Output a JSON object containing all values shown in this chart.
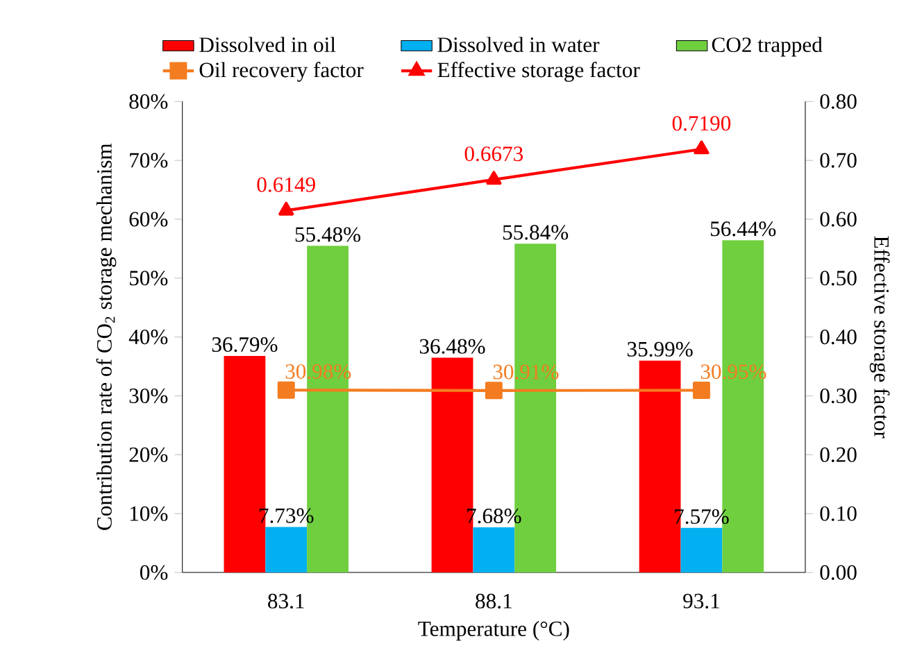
{
  "chart_data": {
    "type": "bar",
    "categories": [
      "83.1",
      "88.1",
      "93.1"
    ],
    "xlabel": "Temperature (°C)",
    "ylabel": "Contribution rate of CO$_{2}$ storage mechanism",
    "y2label": "Effective storage factor",
    "ylim": [
      0,
      80
    ],
    "yticks": [
      {
        "value": 0,
        "label": "0%"
      },
      {
        "value": 10,
        "label": "10%"
      },
      {
        "value": 20,
        "label": "20%"
      },
      {
        "value": 30,
        "label": "30%"
      },
      {
        "value": 40,
        "label": "40%"
      },
      {
        "value": 50,
        "label": "50%"
      },
      {
        "value": 60,
        "label": "60%"
      },
      {
        "value": 70,
        "label": "70%"
      },
      {
        "value": 80,
        "label": "80%"
      }
    ],
    "y2lim": [
      0,
      0.8
    ],
    "y2ticks": [
      {
        "value": 0,
        "label": "0.00"
      },
      {
        "value": 0.1,
        "label": "0.10"
      },
      {
        "value": 0.2,
        "label": "0.20"
      },
      {
        "value": 0.3,
        "label": "0.30"
      },
      {
        "value": 0.4,
        "label": "0.40"
      },
      {
        "value": 0.5,
        "label": "0.50"
      },
      {
        "value": 0.6,
        "label": "0.60"
      },
      {
        "value": 0.7,
        "label": "0.70"
      },
      {
        "value": 0.8,
        "label": "0.80"
      }
    ],
    "legend": "top",
    "series": [
      {
        "name": "Dissolved in oil",
        "color": "#ff0000",
        "values": [
          36.79,
          36.48,
          35.99
        ],
        "value_labels": [
          "36.79%",
          "36.48%",
          "35.99%"
        ]
      },
      {
        "name": "Dissolved in water",
        "color": "#00b0f0",
        "values": [
          7.73,
          7.68,
          7.57
        ],
        "value_labels": [
          "7.73%",
          "7.68%",
          "7.57%"
        ]
      },
      {
        "name": "CO2 trapped",
        "color": "#6fcf3f",
        "values": [
          55.48,
          55.84,
          56.44
        ],
        "value_labels": [
          "55.48%",
          "55.84%",
          "56.44%"
        ]
      },
      {
        "name": "Oil recovery factor",
        "type": "line",
        "marker": "square",
        "color": "#f47c20",
        "values": [
          30.98,
          30.91,
          30.95
        ],
        "value_labels": [
          "30.98%",
          "30.91%",
          "30.95%"
        ]
      },
      {
        "name": "Effective storage factor",
        "type": "line",
        "marker": "triangle",
        "axis": "y2",
        "color": "#ff0000",
        "values": [
          0.6149,
          0.6673,
          0.719
        ],
        "value_labels": [
          "0.6149",
          "0.6673",
          "0.7190"
        ]
      }
    ]
  }
}
